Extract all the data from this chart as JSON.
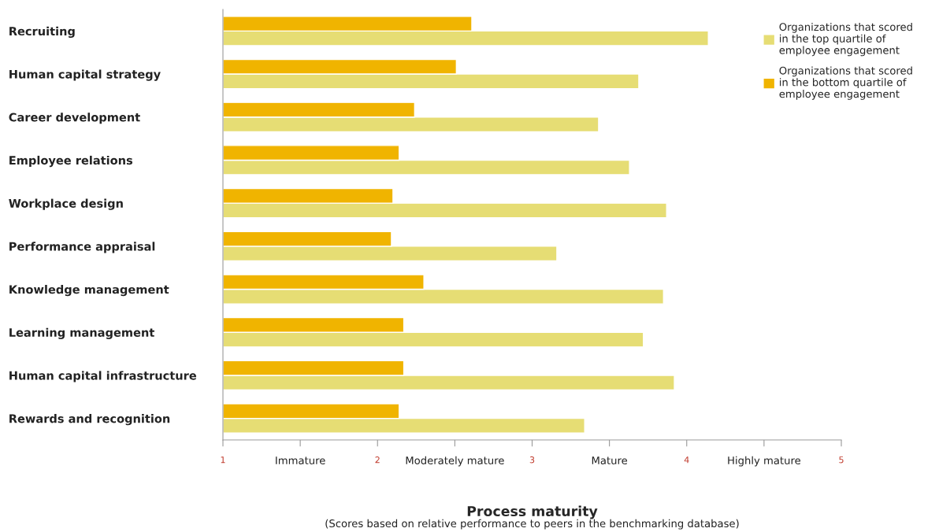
{
  "chart_data": {
    "type": "bar",
    "orientation": "horizontal",
    "categories": [
      "Recruiting",
      "Human capital strategy",
      "Career development",
      "Employee relations",
      "Workplace design",
      "Performance appraisal",
      "Knowledge management",
      "Learning management",
      "Human capital infrastructure",
      "Rewards and recognition"
    ],
    "series": [
      {
        "name": "Organizations that scored\nin the top quartile of\nemployee engagement",
        "color": "#e6dd74",
        "values": [
          4.14,
          3.69,
          3.43,
          3.63,
          3.87,
          3.16,
          3.85,
          3.72,
          3.92,
          3.34
        ]
      },
      {
        "name": "Organizations that scored\nin the bottom quartile of\nemployee engagement",
        "color": "#f0b400",
        "values": [
          2.61,
          2.51,
          2.24,
          2.14,
          2.1,
          2.09,
          2.3,
          2.17,
          2.17,
          2.14
        ]
      }
    ],
    "xlim": [
      1,
      5
    ],
    "xticks": [
      1,
      {
        "value": 1.5,
        "label": "Immature"
      },
      2,
      {
        "value": 2.5,
        "label": "Moderately mature"
      },
      3,
      {
        "value": 3.5,
        "label": "Mature"
      },
      4,
      {
        "value": 4.5,
        "label": "Highly mature"
      },
      5
    ],
    "xlabel": "Process maturity",
    "annotations": [
      "(Scores based on relative performance to peers in the benchmarking database)"
    ],
    "legend": "top right",
    "grid": false
  }
}
